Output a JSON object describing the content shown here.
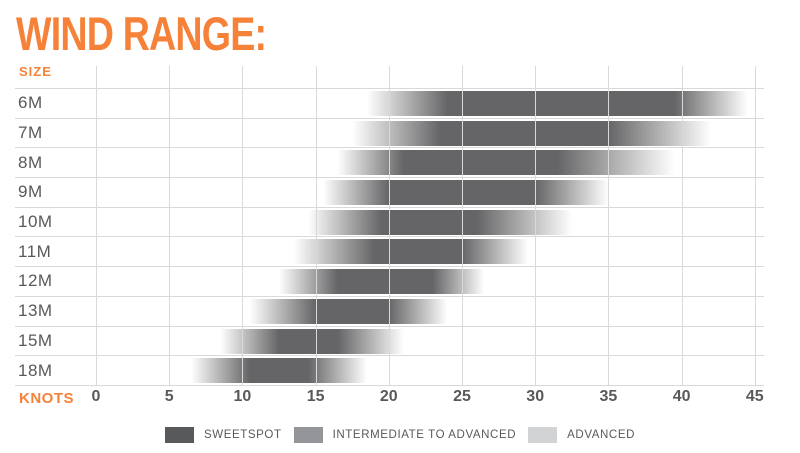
{
  "title": "WIND RANGE:",
  "axis": {
    "size_label": "SIZE",
    "knots_label": "KNOTS",
    "ticks": [
      0,
      5,
      10,
      15,
      20,
      25,
      30,
      35,
      40,
      45
    ],
    "min": 0,
    "max": 45
  },
  "legend": {
    "items": [
      {
        "label": "SWEETSPOT",
        "color": "#58595b"
      },
      {
        "label": "INTERMEDIATE TO ADVANCED",
        "color": "#939598"
      },
      {
        "label": "ADVANCED",
        "color": "#d1d3d4"
      }
    ]
  },
  "chart_data": {
    "type": "bar",
    "subtype": "horizontal-range-gradient",
    "title": "WIND RANGE:",
    "xlabel": "KNOTS",
    "ylabel": "SIZE",
    "xlim": [
      0,
      45
    ],
    "grid": true,
    "legend_position": "bottom-center",
    "zone_meaning": {
      "dark": "SWEETSPOT",
      "medium": "INTERMEDIATE TO ADVANCED",
      "light": "ADVANCED"
    },
    "categories": [
      "6M",
      "7M",
      "8M",
      "9M",
      "10M",
      "11M",
      "12M",
      "13M",
      "15M",
      "18M"
    ],
    "rows": [
      {
        "size": "6M",
        "range_min": 18.5,
        "sweetspot_min": 24.0,
        "sweetspot_max": 39.5,
        "range_max": 44.5
      },
      {
        "size": "7M",
        "range_min": 17.5,
        "sweetspot_min": 23.5,
        "sweetspot_max": 35.0,
        "range_max": 42.0
      },
      {
        "size": "8M",
        "range_min": 16.5,
        "sweetspot_min": 21.0,
        "sweetspot_max": 31.5,
        "range_max": 39.5
      },
      {
        "size": "9M",
        "range_min": 15.5,
        "sweetspot_min": 20.0,
        "sweetspot_max": 30.0,
        "range_max": 35.0
      },
      {
        "size": "10M",
        "range_min": 14.5,
        "sweetspot_min": 19.5,
        "sweetspot_max": 26.0,
        "range_max": 32.5
      },
      {
        "size": "11M",
        "range_min": 13.5,
        "sweetspot_min": 19.0,
        "sweetspot_max": 25.0,
        "range_max": 29.5
      },
      {
        "size": "12M",
        "range_min": 12.5,
        "sweetspot_min": 16.5,
        "sweetspot_max": 23.0,
        "range_max": 26.5
      },
      {
        "size": "13M",
        "range_min": 10.5,
        "sweetspot_min": 15.0,
        "sweetspot_max": 20.0,
        "range_max": 24.0
      },
      {
        "size": "15M",
        "range_min": 8.5,
        "sweetspot_min": 12.5,
        "sweetspot_max": 16.5,
        "range_max": 21.0
      },
      {
        "size": "18M",
        "range_min": 6.5,
        "sweetspot_min": 10.5,
        "sweetspot_max": 14.5,
        "range_max": 18.5
      }
    ]
  },
  "colors": {
    "accent_orange": "#f58238",
    "text_gray": "#58595b",
    "grid": "#d9d9d9",
    "bar_dark": "#656567"
  }
}
